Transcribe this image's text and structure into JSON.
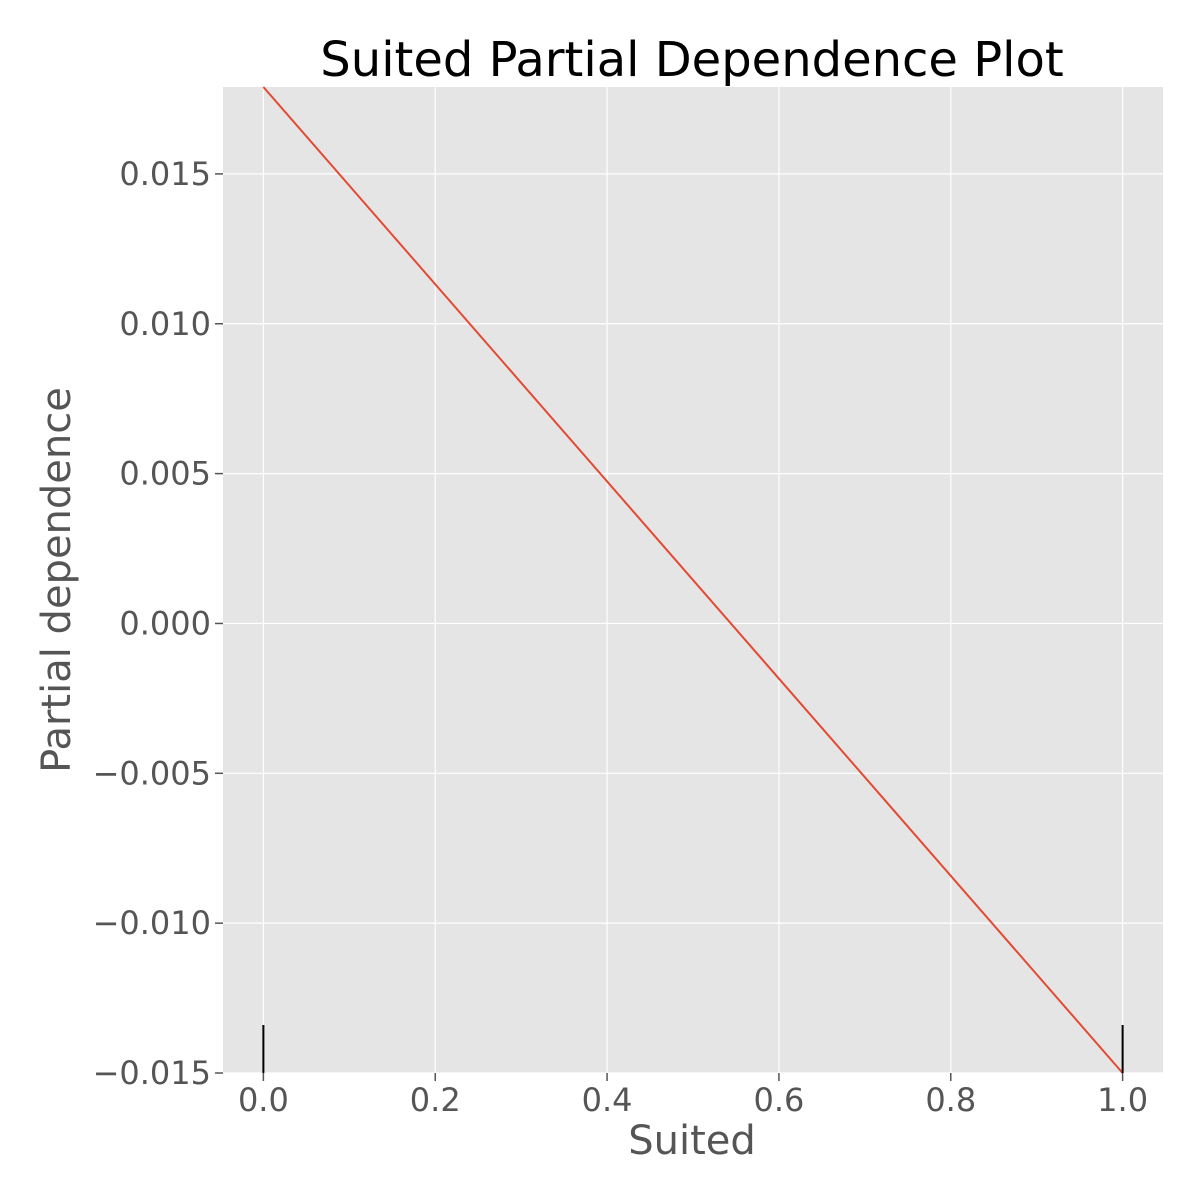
{
  "chart_data": {
    "type": "line",
    "title": "Suited Partial Dependence Plot",
    "xlabel": "Suited",
    "ylabel": "Partial dependence",
    "xlim": [
      -0.047,
      1.047
    ],
    "ylim": [
      -0.015,
      0.0179
    ],
    "grid": true,
    "background": "#e5e5e5",
    "line_color": "#e24a33",
    "x_ticks": [
      0.0,
      0.2,
      0.4,
      0.6,
      0.8,
      1.0
    ],
    "x_tick_labels": [
      "0.0",
      "0.2",
      "0.4",
      "0.6",
      "0.8",
      "1.0"
    ],
    "y_ticks": [
      0.015,
      0.01,
      0.005,
      0.0,
      -0.005,
      -0.01,
      -0.015
    ],
    "y_tick_labels": [
      "0.015",
      "0.010",
      "0.005",
      "0.000",
      "−0.005",
      "−0.010",
      "−0.015"
    ],
    "series": [
      {
        "x": [
          0.0,
          1.0
        ],
        "y": [
          0.0179,
          -0.015
        ]
      }
    ],
    "rug": [
      0.0,
      1.0
    ]
  }
}
